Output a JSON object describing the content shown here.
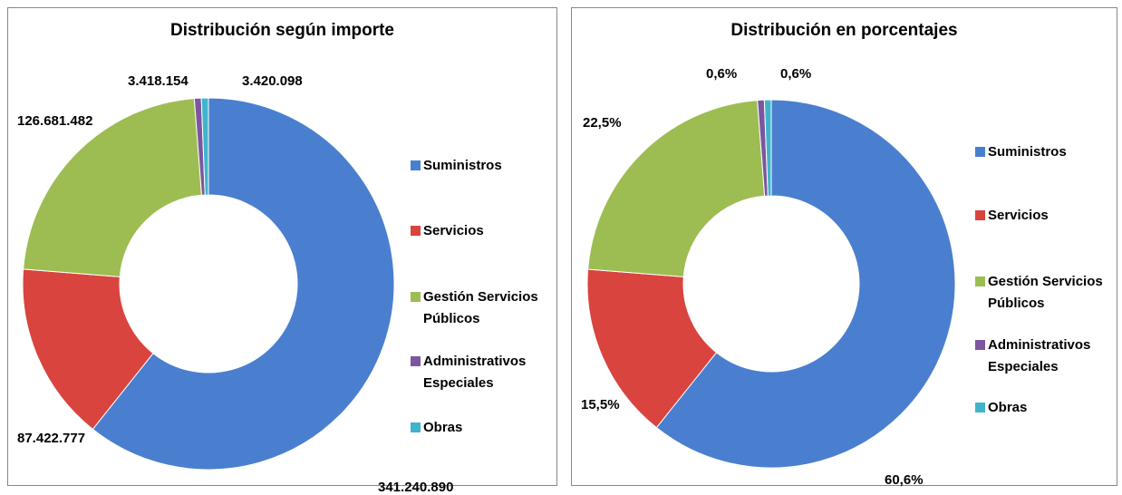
{
  "chart_data": [
    {
      "type": "donut",
      "title": "Distribución según importe",
      "categories": [
        "Suministros",
        "Servicios",
        "Gestión Servicios Públicos",
        "Administrativos Especiales",
        "Obras"
      ],
      "values": [
        341240890,
        87422777,
        126681482,
        3418154,
        3420098
      ],
      "value_labels": [
        "341.240.890",
        "87.422.777",
        "126.681.482",
        "3.418.154",
        "3.420.098"
      ],
      "colors": [
        "#4a7fd0",
        "#d9443f",
        "#9dbd52",
        "#7c56a0",
        "#3fb5cc"
      ],
      "legend": "right"
    },
    {
      "type": "donut",
      "title": "Distribución en porcentajes",
      "categories": [
        "Suministros",
        "Servicios",
        "Gestión Servicios Públicos",
        "Administrativos Especiales",
        "Obras"
      ],
      "values": [
        60.6,
        15.5,
        22.5,
        0.6,
        0.6
      ],
      "value_labels": [
        "60,6%",
        "15,5%",
        "22,5%",
        "0,6%",
        "0,6%"
      ],
      "colors": [
        "#4a7fd0",
        "#d9443f",
        "#9dbd52",
        "#7c56a0",
        "#3fb5cc"
      ],
      "legend": "right"
    }
  ]
}
